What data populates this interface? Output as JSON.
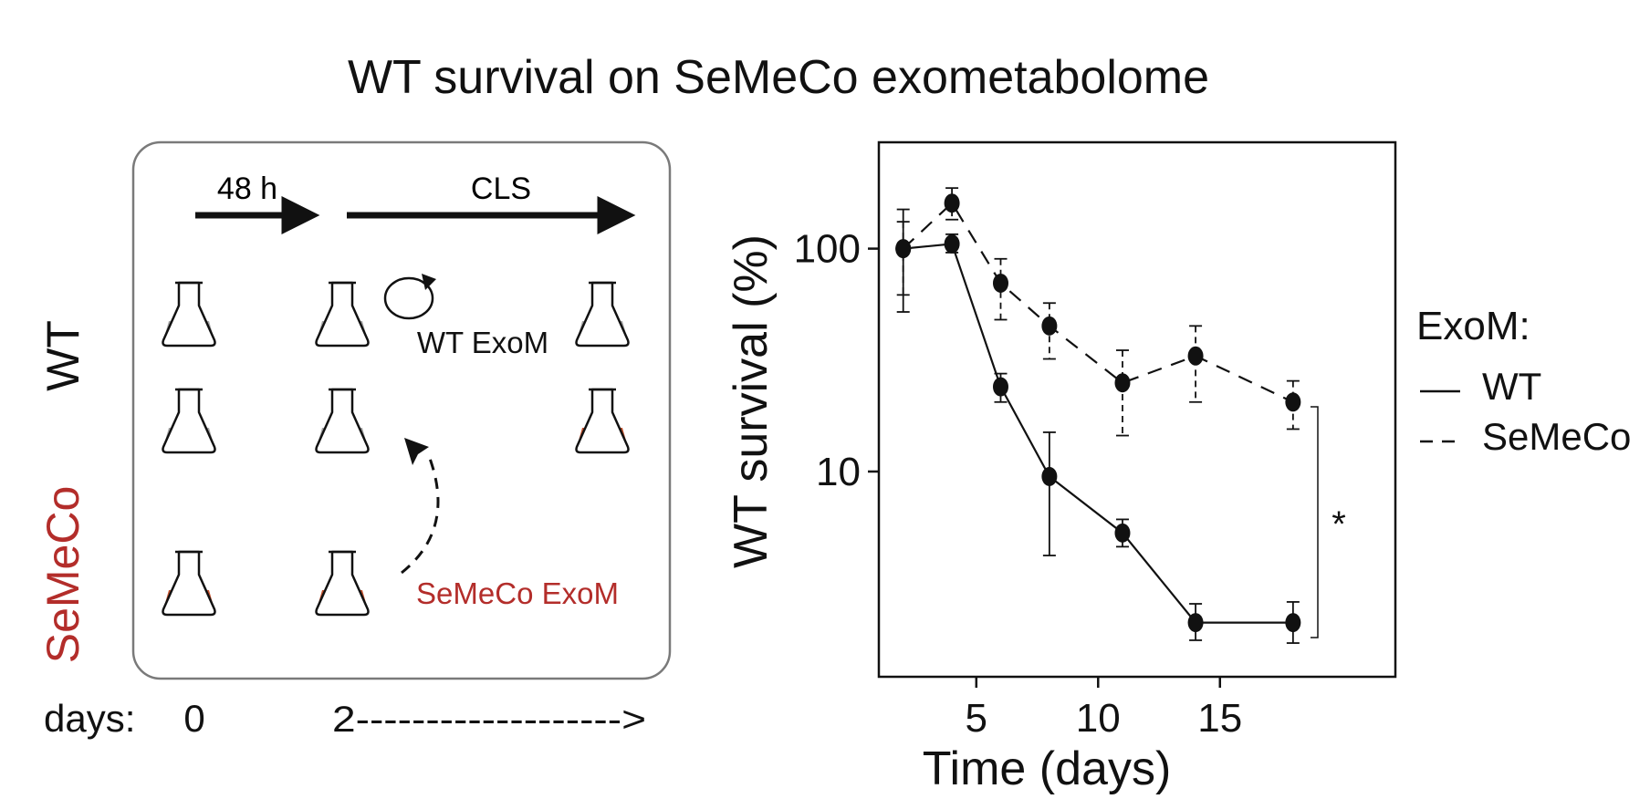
{
  "figure_title": "WT survival on SeMeCo exometabolome",
  "schematic": {
    "arrow_48h_label": "48 h",
    "arrow_cls_label": "CLS",
    "row_label_wt": "WT",
    "row_label_semeco": "SeMeCo",
    "wt_exom_label": "WT ExoM",
    "semeco_exom_label": "SeMeCo ExoM",
    "days_label": "days:",
    "day0_label": "0",
    "day2_label": "2------------------->",
    "colors": {
      "wt_medium": "#a6a6a6",
      "semeco_medium": "#c4512c",
      "semeco_text": "#b32d2a",
      "frame": "#7a7a7a"
    }
  },
  "chart_data": {
    "type": "line",
    "title": "WT survival on SeMeCo exometabolome",
    "xlabel": "Time (days)",
    "ylabel": "WT survival (%)",
    "yscale": "log",
    "xlim": [
      1,
      22.2
    ],
    "ylim": [
      1.2,
      300
    ],
    "xticks": [
      5,
      10,
      15
    ],
    "yticks": [
      10,
      100
    ],
    "legend_title": "ExoM:",
    "legend_position": "right",
    "series": [
      {
        "name": "WT",
        "style": "solid",
        "x": [
          2,
          4,
          6,
          8,
          11,
          14,
          18
        ],
        "y": [
          100,
          105,
          24,
          9.5,
          5.3,
          2.1,
          2.1
        ],
        "err_low": [
          52,
          96,
          20.5,
          4.2,
          4.6,
          1.75,
          1.7
        ],
        "err_high": [
          150,
          116,
          27.5,
          15,
          6.1,
          2.55,
          2.6
        ]
      },
      {
        "name": "SeMeCo",
        "style": "dashed",
        "x": [
          2,
          4,
          6,
          8,
          11,
          14,
          18
        ],
        "y": [
          100,
          160,
          70,
          45,
          25,
          33,
          20.5
        ],
        "err_low": [
          62,
          135,
          48,
          32,
          14.5,
          20.5,
          15.5
        ],
        "err_high": [
          132,
          187,
          90,
          57,
          35,
          45,
          25.5
        ]
      }
    ],
    "significance_label": "*"
  }
}
